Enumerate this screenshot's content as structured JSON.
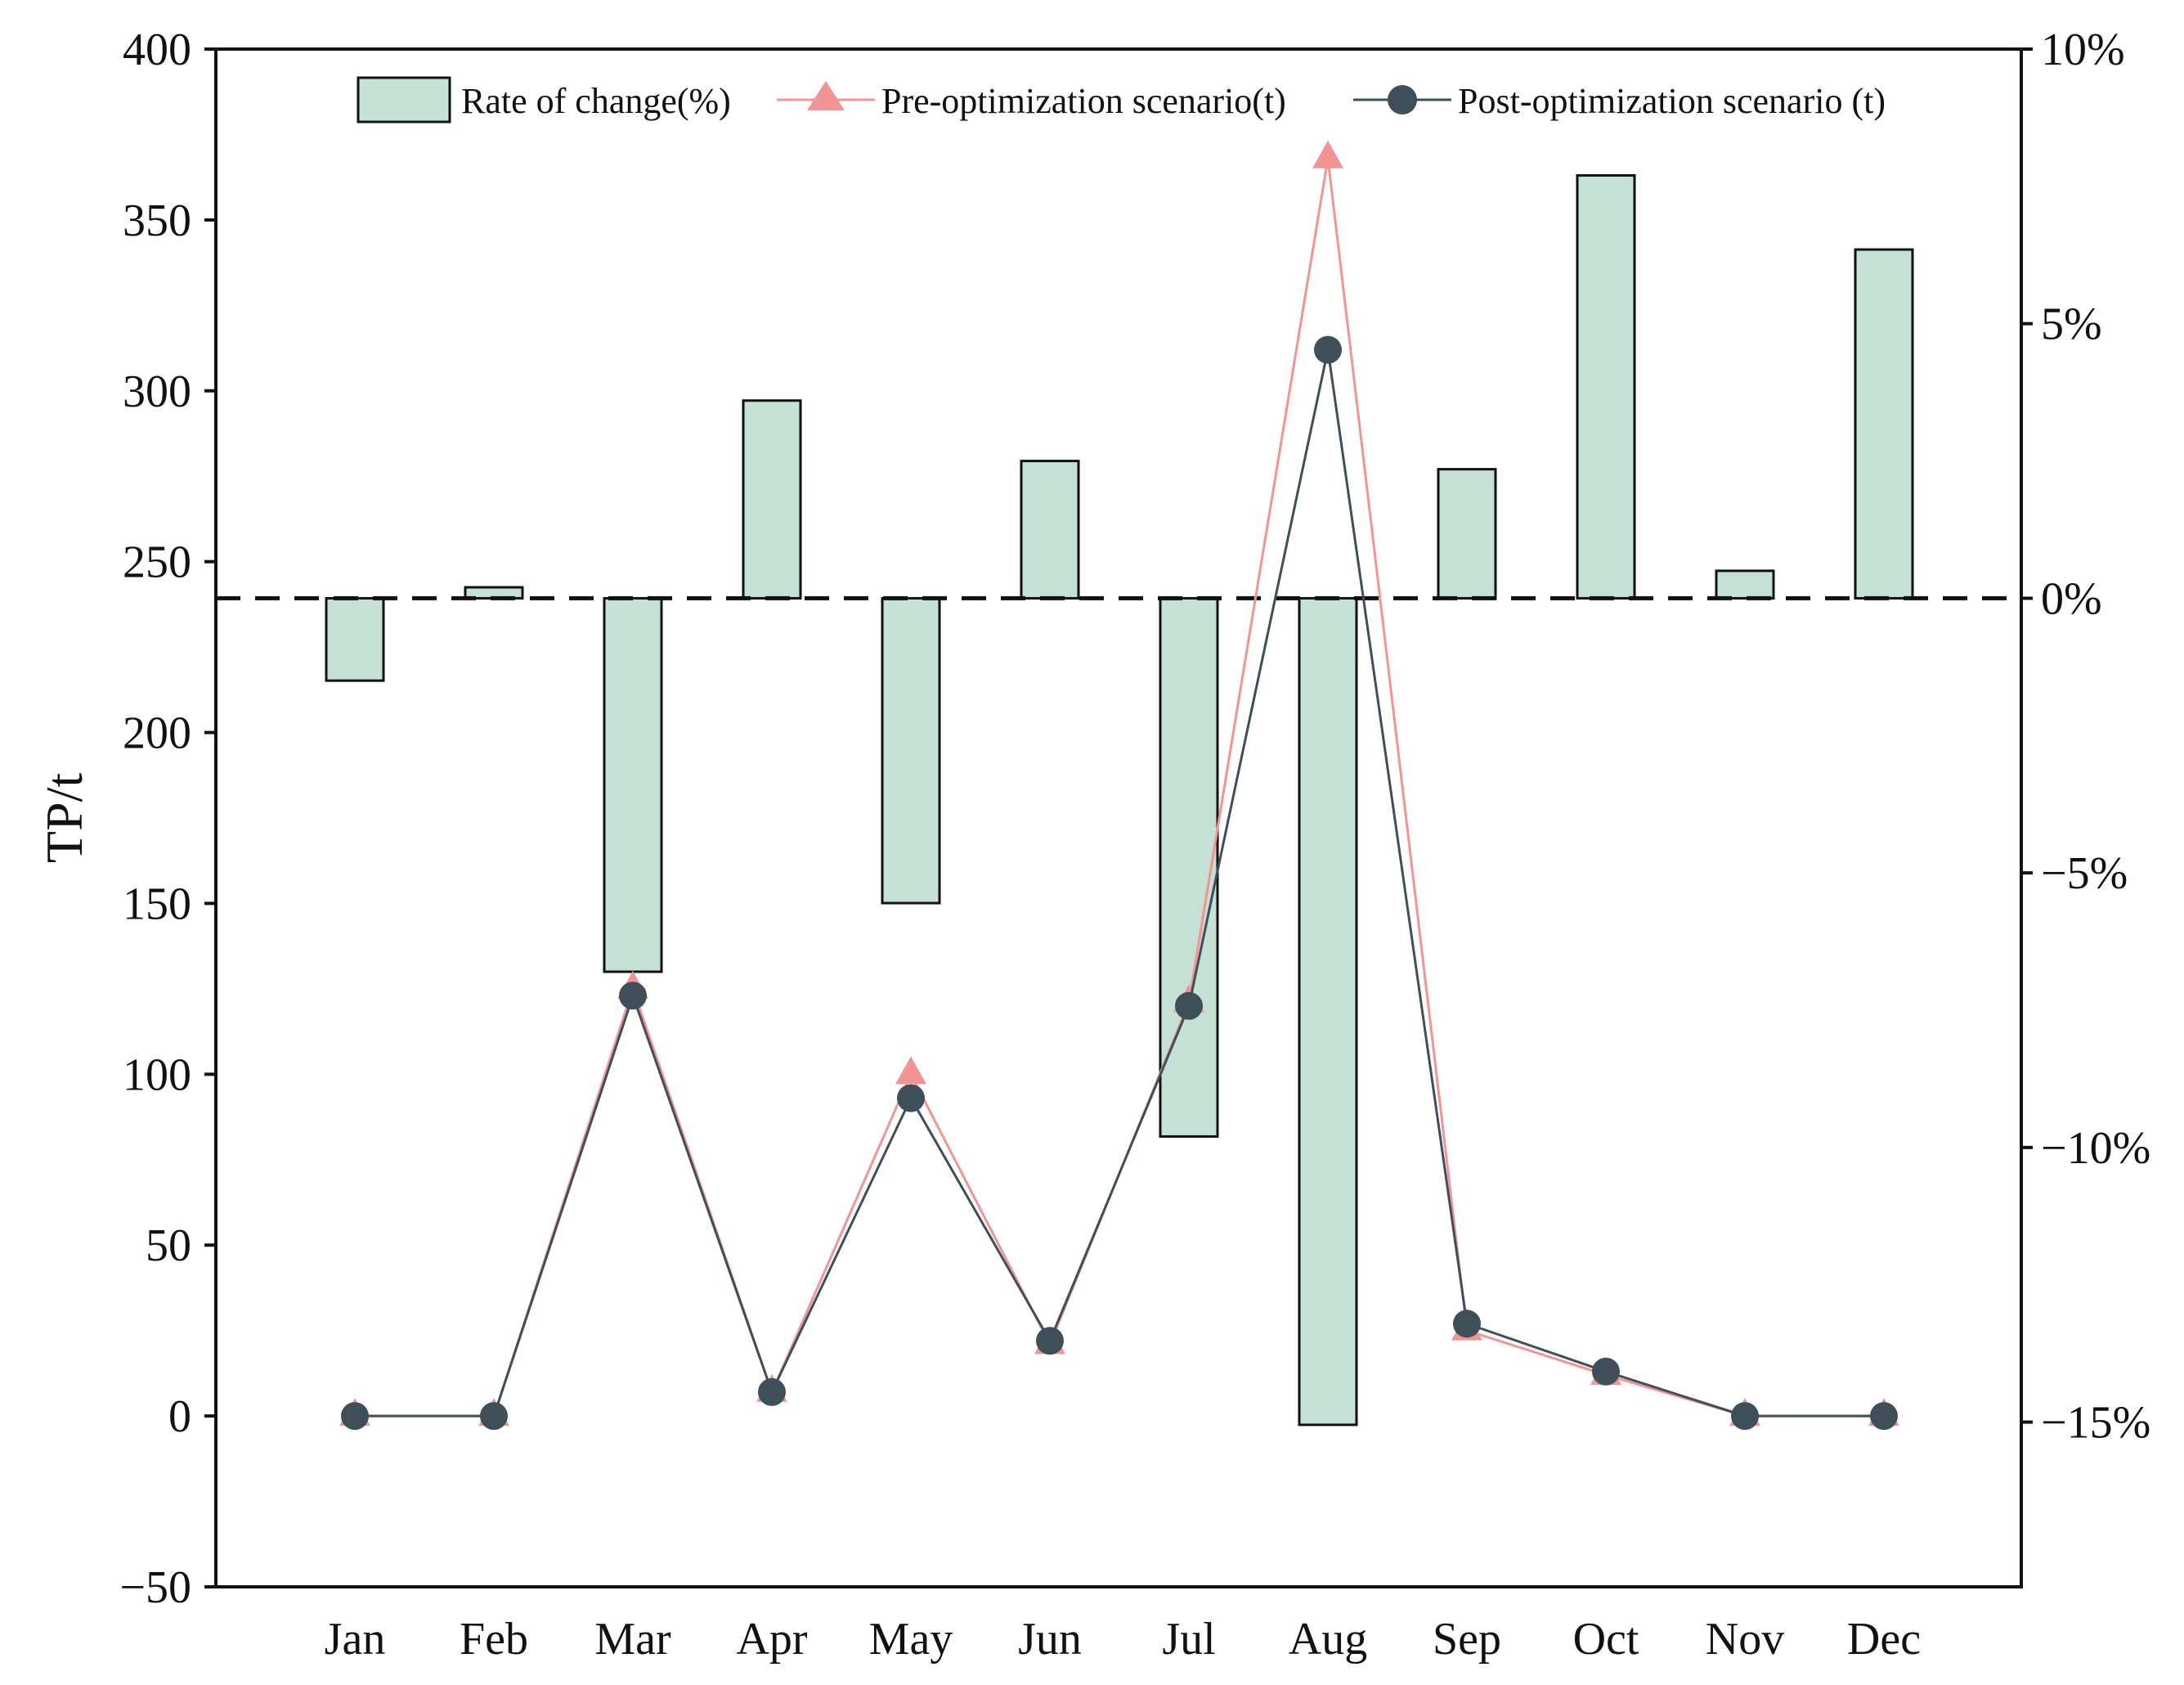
{
  "chart_data": {
    "type": "bar",
    "title": "",
    "categories": [
      "Jan",
      "Feb",
      "Mar",
      "Apr",
      "May",
      "Jun",
      "Jul",
      "Aug",
      "Sep",
      "Oct",
      "Nov",
      "Dec"
    ],
    "ylabel": "TP/t",
    "ylim": [
      -50,
      400
    ],
    "yticks": [
      -50,
      0,
      50,
      100,
      150,
      200,
      250,
      300,
      350,
      400
    ],
    "ytick_labels": [
      "−50",
      "0",
      "50",
      "100",
      "150",
      "200",
      "250",
      "300",
      "350",
      "400"
    ],
    "y2lim": [
      -18,
      10
    ],
    "y2ticks": [
      10,
      5,
      0,
      -5,
      -10,
      -15
    ],
    "y2tick_labels": [
      "10%",
      "5%",
      "0%",
      "−5%",
      "−10%",
      "−15%"
    ],
    "grid": false,
    "legend_position": "top",
    "series": [
      {
        "name": "Rate of change(%)",
        "type": "bar",
        "axis": "right",
        "values": [
          -1.5,
          0.2,
          -6.8,
          3.6,
          -5.55,
          2.5,
          -9.8,
          -15.05,
          2.35,
          7.7,
          0.5,
          6.35
        ],
        "color": "#c5e0d4",
        "edge_color": "#111111"
      },
      {
        "name": "Pre-optimization scenario(t)",
        "type": "line",
        "axis": "left",
        "marker": "triangle",
        "values": [
          0,
          0,
          125,
          7,
          100,
          21,
          121,
          368,
          25,
          12,
          0,
          0
        ],
        "color": "#f49393"
      },
      {
        "name": "Post-optimization scenario (t)",
        "type": "line",
        "axis": "left",
        "marker": "circle",
        "values": [
          0,
          0,
          123,
          7,
          93,
          22,
          120,
          312,
          27,
          13,
          0,
          0
        ],
        "color": "#3e4f5a"
      }
    ],
    "reference_line": {
      "axis": "right",
      "value": 0,
      "style": "dashed",
      "color": "#111111"
    }
  }
}
